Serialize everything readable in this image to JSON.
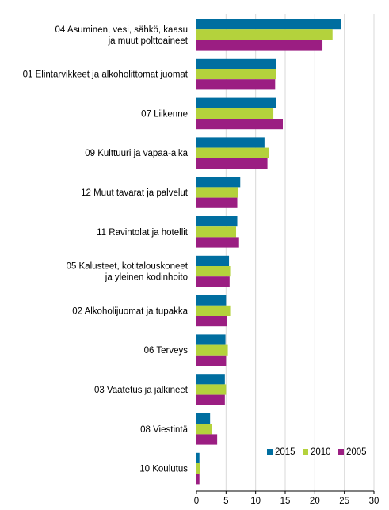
{
  "chart_data": {
    "type": "bar",
    "orientation": "horizontal",
    "categories": [
      [
        "04 Asuminen, vesi, sähkö, kaasu",
        "ja muut polttoaineet"
      ],
      [
        "01 Elintarvikkeet ja alkoholittomat juomat"
      ],
      [
        "07 Liikenne"
      ],
      [
        "09 Kulttuuri ja vapaa-aika"
      ],
      [
        "12 Muut tavarat ja palvelut"
      ],
      [
        "11 Ravintolat ja hotellit"
      ],
      [
        "05 Kalusteet, kotitalouskoneet",
        "ja yleinen kodinhoito"
      ],
      [
        "02 Alkoholijuomat ja tupakka"
      ],
      [
        "06 Terveys"
      ],
      [
        "03 Vaatetus ja jalkineet"
      ],
      [
        "08 Viestintä"
      ],
      [
        "10 Koulutus"
      ]
    ],
    "series": [
      {
        "name": "2015",
        "color": "#006ea0",
        "values": [
          24.5,
          13.5,
          13.4,
          11.5,
          7.4,
          6.9,
          5.5,
          5.0,
          4.9,
          4.8,
          2.3,
          0.5
        ]
      },
      {
        "name": "2010",
        "color": "#b4d23c",
        "values": [
          23.0,
          13.4,
          13.0,
          12.3,
          7.0,
          6.7,
          5.7,
          5.7,
          5.3,
          5.0,
          2.6,
          0.6
        ]
      },
      {
        "name": "2005",
        "color": "#9b1e82",
        "values": [
          21.3,
          13.3,
          14.6,
          12.0,
          6.9,
          7.2,
          5.6,
          5.2,
          5.0,
          4.8,
          3.5,
          0.5
        ]
      }
    ],
    "xlim": [
      0,
      30
    ],
    "xticks": [
      0,
      5,
      10,
      15,
      20,
      25,
      30
    ],
    "grid": true,
    "legend_position": "bottom-right",
    "title": "",
    "xlabel": "",
    "ylabel": ""
  }
}
